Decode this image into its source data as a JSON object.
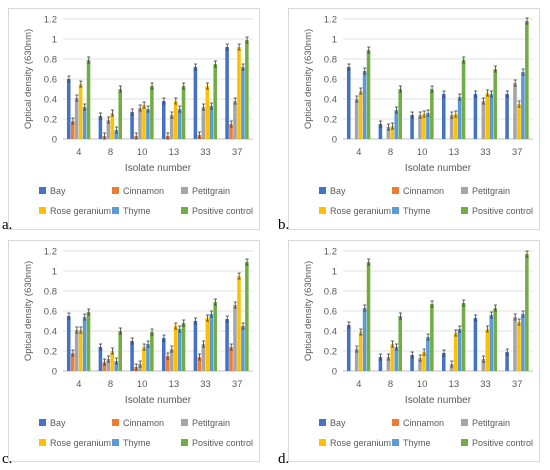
{
  "legend_order": [
    "Bay",
    "Cinnamon",
    "Petitgrain",
    "Rose geranium",
    "Thyme",
    "Positive control"
  ],
  "colors": {
    "Bay": "#4472c4",
    "Cinnamon": "#ed7d31",
    "Petitgrain": "#a5a5a5",
    "Rose geranium": "#ffc000",
    "Thyme": "#5b9bd5",
    "Positive control": "#70ad47",
    "gridline": "#d9d9d9",
    "error_bar": "#404040"
  },
  "chart_data": [
    {
      "panel": "a.",
      "type": "bar",
      "ylabel": "Optical density (630nm)",
      "xlabel": "Isolate number",
      "ylim": [
        0,
        1.2
      ],
      "yticks": [
        "0",
        "0.2",
        "0.4",
        "0.6",
        "0.8",
        "1",
        "1.2"
      ],
      "categories": [
        "4",
        "8",
        "10",
        "13",
        "33",
        "37"
      ],
      "grid": true,
      "legend_position": "bottom",
      "error_bars": true,
      "series": [
        {
          "name": "Bay",
          "values": [
            0.6,
            0.23,
            0.27,
            0.38,
            0.72,
            0.92
          ]
        },
        {
          "name": "Cinnamon",
          "values": [
            0.18,
            0.03,
            0.03,
            0.03,
            0.04,
            0.15
          ]
        },
        {
          "name": "Petitgrain",
          "values": [
            0.41,
            0.19,
            0.31,
            0.24,
            0.32,
            0.38
          ]
        },
        {
          "name": "Rose geranium",
          "values": [
            0.55,
            0.26,
            0.34,
            0.38,
            0.53,
            0.92
          ]
        },
        {
          "name": "Thyme",
          "values": [
            0.32,
            0.09,
            0.3,
            0.3,
            0.33,
            0.72
          ]
        },
        {
          "name": "Positive control",
          "values": [
            0.79,
            0.5,
            0.53,
            0.53,
            0.75,
            0.99
          ]
        }
      ]
    },
    {
      "panel": "b.",
      "type": "bar",
      "ylabel": "Optical density (630nm)",
      "xlabel": "Isolate number",
      "ylim": [
        0,
        1.2
      ],
      "yticks": [
        "0",
        "0.2",
        "0.4",
        "0.6",
        "0.8",
        "1",
        "1.2"
      ],
      "categories": [
        "4",
        "8",
        "10",
        "13",
        "33",
        "37"
      ],
      "grid": true,
      "legend_position": "bottom",
      "error_bars": true,
      "series": [
        {
          "name": "Bay",
          "values": [
            0.72,
            0.15,
            0.24,
            0.45,
            0.45,
            0.45
          ]
        },
        {
          "name": "Cinnamon",
          "values": [
            0.0,
            0.0,
            0.0,
            0.0,
            0.0,
            0.0
          ]
        },
        {
          "name": "Petitgrain",
          "values": [
            0.4,
            0.12,
            0.24,
            0.24,
            0.38,
            0.56
          ]
        },
        {
          "name": "Rose geranium",
          "values": [
            0.48,
            0.13,
            0.25,
            0.25,
            0.46,
            0.35
          ]
        },
        {
          "name": "Thyme",
          "values": [
            0.68,
            0.29,
            0.26,
            0.42,
            0.45,
            0.67
          ]
        },
        {
          "name": "Positive control",
          "values": [
            0.89,
            0.5,
            0.5,
            0.79,
            0.7,
            1.18
          ]
        }
      ]
    },
    {
      "panel": "c.",
      "type": "bar",
      "ylabel": "Optical density (630nm)",
      "xlabel": "Isolate number",
      "ylim": [
        0,
        1.2
      ],
      "yticks": [
        "0",
        "0.2",
        "0.4",
        "0.6",
        "0.8",
        "1",
        "1.2"
      ],
      "categories": [
        "4",
        "8",
        "10",
        "13",
        "33",
        "37"
      ],
      "grid": true,
      "legend_position": "bottom",
      "error_bars": true,
      "series": [
        {
          "name": "Bay",
          "values": [
            0.55,
            0.24,
            0.3,
            0.33,
            0.5,
            0.52
          ]
        },
        {
          "name": "Cinnamon",
          "values": [
            0.18,
            0.09,
            0.04,
            0.15,
            0.14,
            0.24
          ]
        },
        {
          "name": "Petitgrain",
          "values": [
            0.41,
            0.12,
            0.07,
            0.22,
            0.27,
            0.66
          ]
        },
        {
          "name": "Rose geranium",
          "values": [
            0.41,
            0.2,
            0.24,
            0.45,
            0.53,
            0.95
          ]
        },
        {
          "name": "Thyme",
          "values": [
            0.54,
            0.1,
            0.27,
            0.42,
            0.57,
            0.45
          ]
        },
        {
          "name": "Positive control",
          "values": [
            0.59,
            0.4,
            0.39,
            0.48,
            0.69,
            1.09
          ]
        }
      ]
    },
    {
      "panel": "d.",
      "type": "bar",
      "ylabel": "Optical density (630nm)",
      "xlabel": "Isolate number",
      "ylim": [
        0,
        1.2
      ],
      "yticks": [
        "0",
        "0.2",
        "0.4",
        "0.6",
        "0.8",
        "1",
        "1.2"
      ],
      "categories": [
        "4",
        "8",
        "10",
        "13",
        "33",
        "37"
      ],
      "grid": true,
      "legend_position": "bottom",
      "error_bars": true,
      "series": [
        {
          "name": "Bay",
          "values": [
            0.46,
            0.14,
            0.16,
            0.18,
            0.53,
            0.19
          ]
        },
        {
          "name": "Cinnamon",
          "values": [
            0.0,
            0.0,
            0.0,
            0.0,
            0.0,
            0.0
          ]
        },
        {
          "name": "Petitgrain",
          "values": [
            0.22,
            0.14,
            0.13,
            0.07,
            0.12,
            0.54
          ]
        },
        {
          "name": "Rose geranium",
          "values": [
            0.39,
            0.27,
            0.19,
            0.38,
            0.42,
            0.49
          ]
        },
        {
          "name": "Thyme",
          "values": [
            0.63,
            0.24,
            0.34,
            0.42,
            0.56,
            0.57
          ]
        },
        {
          "name": "Positive control",
          "values": [
            1.09,
            0.55,
            0.67,
            0.68,
            0.63,
            1.17
          ]
        }
      ]
    }
  ]
}
